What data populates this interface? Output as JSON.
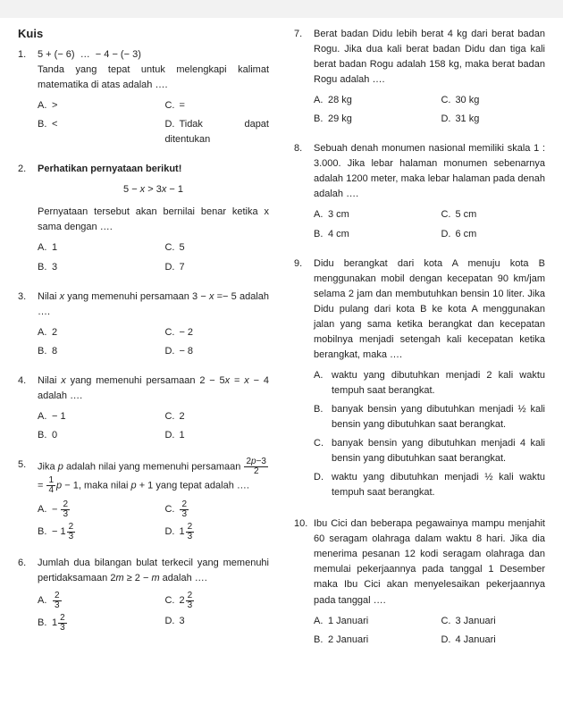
{
  "title": "Kuis",
  "left": [
    {
      "num": "1.",
      "stem_html": "5 + (− 6)&nbsp;&nbsp;…&nbsp;&nbsp;− 4 − (− 3)<br>Tanda yang tepat untuk melengkapi kalimat matematika di atas adalah ….",
      "opts2": [
        [
          "A.",
          "&gt;",
          "C.",
          "="
        ],
        [
          "B.",
          "&lt;",
          "D.",
          "Tidak dapat ditentukan"
        ]
      ]
    },
    {
      "num": "2.",
      "bold_stem": "Perhatikan pernyataan berikut!",
      "center": "5 − <i>x</i> &gt; 3<i>x</i> − 1",
      "stem2": "Pernyataan tersebut akan bernilai benar ketika x sama dengan ….",
      "opts2": [
        [
          "A.",
          "1",
          "C.",
          "5"
        ],
        [
          "B.",
          "3",
          "D.",
          "7"
        ]
      ]
    },
    {
      "num": "3.",
      "stem_html": "Nilai <i>x</i> yang memenuhi persamaan 3 − <i>x</i> =− 5 adalah ….",
      "opts2": [
        [
          "A.",
          "2",
          "C.",
          "− 2"
        ],
        [
          "B.",
          "8",
          "D.",
          "− 8"
        ]
      ]
    },
    {
      "num": "4.",
      "stem_html": "Nilai <i>x</i> yang memenuhi persamaan 2 − 5<i>x</i> = <i>x</i> − 4 adalah ….",
      "opts2": [
        [
          "A.",
          "− 1",
          "C.",
          "2"
        ],
        [
          "B.",
          "0",
          "D.",
          "1"
        ]
      ]
    },
    {
      "num": "5.",
      "stem_html": "Jika <i>p</i> adalah nilai yang memenuhi persamaan <span class='frac'><span class='num'>2<i>p</i>−3</span><span class='den'>2</span></span> = <span class='frac'><span class='num'>1</span><span class='den'>4</span></span><i>p</i> − 1, maka nilai <i>p</i> + 1 yang tepat adalah ….",
      "opts2": [
        [
          "A.",
          "− <span class='frac'><span class='num'>2</span><span class='den'>3</span></span>",
          "C.",
          "<span class='frac'><span class='num'>2</span><span class='den'>3</span></span>"
        ],
        [
          "B.",
          "<span class='mixed'>− 1<span class='frac'><span class='num'>2</span><span class='den'>3</span></span></span>",
          "D.",
          "<span class='mixed'>1<span class='frac'><span class='num'>2</span><span class='den'>3</span></span></span>"
        ]
      ]
    },
    {
      "num": "6.",
      "stem_html": "Jumlah dua bilangan bulat terkecil yang memenuhi pertidaksamaan 2<i>m</i> ≥ 2 − <i>m</i> adalah ….",
      "opts2": [
        [
          "A.",
          "<span class='frac'><span class='num'>2</span><span class='den'>3</span></span>",
          "C.",
          "<span class='mixed'>2<span class='frac'><span class='num'>2</span><span class='den'>3</span></span></span>"
        ],
        [
          "B.",
          "<span class='mixed'>1<span class='frac'><span class='num'>2</span><span class='den'>3</span></span></span>",
          "D.",
          "3"
        ]
      ]
    }
  ],
  "right": [
    {
      "num": "7.",
      "stem_html": "Berat badan Didu lebih berat 4 kg dari berat badan Rogu. Jika dua kali berat badan Didu dan tiga kali berat badan Rogu adalah 158 kg, maka berat badan Rogu adalah ….",
      "opts2": [
        [
          "A.",
          "28 kg",
          "C.",
          "30 kg"
        ],
        [
          "B.",
          "29 kg",
          "D.",
          "31 kg"
        ]
      ]
    },
    {
      "num": "8.",
      "stem_html": "Sebuah denah monumen nasional memiliki skala 1 : 3.000. Jika lebar halaman monumen sebenarnya adalah 1200 meter, maka lebar halaman pada denah adalah ….",
      "opts2": [
        [
          "A.",
          "3 cm",
          "C.",
          "5 cm"
        ],
        [
          "B.",
          "4 cm",
          "D.",
          "6 cm"
        ]
      ]
    },
    {
      "num": "9.",
      "stem_html": "Didu berangkat dari kota A menuju kota B menggunakan mobil dengan kecepatan 90 km/jam selama 2 jam dan membutuhkan bensin 10 liter. Jika Didu pulang dari kota B ke kota A menggunakan jalan yang sama ketika berangkat dan kecepatan mobilnya menjadi setengah kali kecepatan ketika berangkat, maka ….",
      "vopts": [
        [
          "A.",
          "waktu yang dibutuhkan menjadi 2 kali waktu tempuh saat berangkat."
        ],
        [
          "B.",
          "banyak bensin yang dibutuhkan menjadi ½ kali bensin yang dibutuhkan saat berangkat."
        ],
        [
          "C.",
          "banyak bensin yang dibutuhkan menjadi 4 kali bensin yang dibutuhkan saat berangkat."
        ],
        [
          "D.",
          "waktu yang dibutuhkan menjadi ½ kali waktu tempuh saat berangkat."
        ]
      ]
    },
    {
      "num": "10.",
      "stem_html": "Ibu Cici dan beberapa pegawainya mampu menjahit 60 seragam olahraga dalam waktu 8 hari. Jika dia menerima pesanan 12 kodi seragam olahraga dan memulai pekerjaannya pada tanggal 1 Desember maka Ibu Cici akan menyelesaikan pekerjaannya pada tanggal ….",
      "opts2": [
        [
          "A.",
          "1 Januari",
          "C.",
          "3 Januari"
        ],
        [
          "B.",
          "2 Januari",
          "D.",
          "4 Januari"
        ]
      ]
    }
  ]
}
